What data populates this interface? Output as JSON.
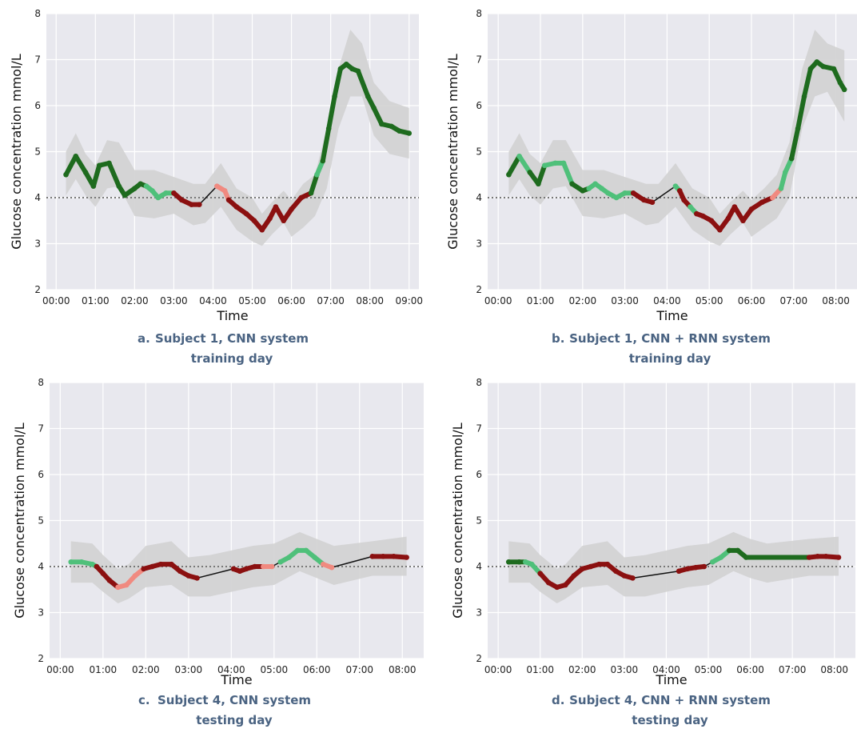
{
  "chart_data": [
    {
      "type": "line",
      "caption": {
        "letter": "a.",
        "line1": "Subject 1, CNN system",
        "line2": "training day"
      },
      "xlabel": "Time",
      "ylabel": "Glucose concentration mmol/L",
      "x_ticks": [
        "00:00",
        "01:00",
        "02:00",
        "03:00",
        "04:00",
        "05:00",
        "06:00",
        "07:00",
        "08:00",
        "09:00"
      ],
      "y_ticks": [
        "2",
        "3",
        "4",
        "5",
        "6",
        "7",
        "8"
      ],
      "xlim": [
        -0.25,
        9.25
      ],
      "ylim": [
        2,
        8
      ],
      "threshold": 4.0,
      "series": [
        {
          "x": [
            0.25,
            0.5,
            0.75,
            0.95,
            1.1,
            1.35,
            1.6,
            1.75,
            2.0,
            2.15,
            2.3,
            2.45,
            2.6,
            2.8,
            3.0,
            3.2,
            3.45,
            3.65,
            4.1,
            4.3,
            4.4,
            4.6,
            4.85,
            5.05,
            5.25,
            5.45,
            5.6,
            5.8,
            6.0,
            6.25,
            6.5,
            6.65,
            6.8,
            6.95,
            7.1,
            7.25,
            7.4,
            7.55,
            7.7,
            7.95,
            8.1,
            8.3,
            8.55,
            8.75,
            9.0
          ],
          "y": [
            4.5,
            4.9,
            4.55,
            4.25,
            4.7,
            4.75,
            4.25,
            4.05,
            4.2,
            4.3,
            4.25,
            4.15,
            4.0,
            4.1,
            4.1,
            3.95,
            3.85,
            3.85,
            4.25,
            4.15,
            3.95,
            3.8,
            3.65,
            3.5,
            3.3,
            3.55,
            3.8,
            3.5,
            3.75,
            4.0,
            4.1,
            4.5,
            4.8,
            5.5,
            6.2,
            6.8,
            6.9,
            6.8,
            6.75,
            6.2,
            5.95,
            5.6,
            5.55,
            5.45,
            5.4
          ],
          "colors": [
            "dg",
            "dg",
            "dg",
            "dg",
            "dg",
            "dg",
            "dg",
            "dg",
            "dg",
            "dg",
            "lg",
            "lg",
            "lg",
            "lg",
            "dr",
            "dr",
            "dr",
            "gap",
            "sal",
            "sal",
            "dr",
            "dr",
            "dr",
            "dr",
            "dr",
            "dr",
            "dr",
            "dr",
            "dr",
            "dr",
            "dg",
            "lg",
            "dg",
            "dg",
            "dg",
            "dg",
            "dg",
            "dg",
            "dg",
            "dg",
            "dg",
            "dg",
            "dg",
            "dg",
            "dg"
          ],
          "band": {
            "x": [
              0.25,
              0.5,
              0.75,
              1.0,
              1.3,
              1.6,
              2.0,
              2.5,
              3.0,
              3.5,
              3.8,
              4.2,
              4.6,
              5.0,
              5.25,
              5.5,
              5.8,
              6.0,
              6.3,
              6.6,
              6.9,
              7.2,
              7.5,
              7.8,
              8.1,
              8.5,
              9.0
            ],
            "upper": [
              5.0,
              5.4,
              4.95,
              4.7,
              5.25,
              5.2,
              4.6,
              4.6,
              4.45,
              4.3,
              4.3,
              4.75,
              4.2,
              4.0,
              3.65,
              3.9,
              4.15,
              3.95,
              4.3,
              4.5,
              5.5,
              6.8,
              7.65,
              7.35,
              6.5,
              6.1,
              5.95
            ],
            "lower": [
              4.05,
              4.4,
              4.05,
              3.8,
              4.2,
              4.25,
              3.6,
              3.55,
              3.65,
              3.4,
              3.45,
              3.8,
              3.3,
              3.05,
              2.95,
              3.2,
              3.45,
              3.15,
              3.35,
              3.6,
              4.2,
              5.5,
              6.2,
              6.2,
              5.35,
              4.95,
              4.85
            ]
          }
        }
      ]
    },
    {
      "type": "line",
      "caption": {
        "letter": "b.",
        "line1": "Subject 1, CNN + RNN system",
        "line2": "training day"
      },
      "xlabel": "Time",
      "ylabel": "Glucose concentration mmol/L",
      "x_ticks": [
        "00:00",
        "01:00",
        "02:00",
        "03:00",
        "04:00",
        "05:00",
        "06:00",
        "07:00",
        "08:00"
      ],
      "y_ticks": [
        "2",
        "3",
        "4",
        "5",
        "6",
        "7",
        "8"
      ],
      "xlim": [
        -0.25,
        8.5
      ],
      "ylim": [
        2,
        8
      ],
      "threshold": 4.0,
      "series": [
        {
          "x": [
            0.25,
            0.5,
            0.75,
            0.95,
            1.1,
            1.35,
            1.55,
            1.75,
            2.0,
            2.15,
            2.3,
            2.45,
            2.6,
            2.8,
            3.0,
            3.2,
            3.45,
            3.65,
            4.2,
            4.3,
            4.4,
            4.55,
            4.7,
            4.85,
            5.05,
            5.25,
            5.45,
            5.6,
            5.8,
            6.0,
            6.25,
            6.5,
            6.7,
            6.8,
            6.95,
            7.1,
            7.25,
            7.4,
            7.55,
            7.7,
            7.95,
            8.1,
            8.2
          ],
          "y": [
            4.5,
            4.9,
            4.55,
            4.3,
            4.7,
            4.75,
            4.75,
            4.3,
            4.15,
            4.2,
            4.3,
            4.2,
            4.1,
            4.0,
            4.1,
            4.1,
            3.95,
            3.9,
            4.25,
            4.15,
            3.95,
            3.8,
            3.65,
            3.6,
            3.5,
            3.3,
            3.55,
            3.8,
            3.5,
            3.75,
            3.9,
            4.0,
            4.2,
            4.55,
            4.85,
            5.5,
            6.2,
            6.8,
            6.95,
            6.85,
            6.8,
            6.5,
            6.35
          ],
          "colors": [
            "dg",
            "lg",
            "dg",
            "dg",
            "lg",
            "lg",
            "lg",
            "dg",
            "dg",
            "lg",
            "lg",
            "lg",
            "lg",
            "lg",
            "lg",
            "dr",
            "dr",
            "gap",
            "lg",
            "dr",
            "dr",
            "lg",
            "dr",
            "dr",
            "dr",
            "dr",
            "dr",
            "dr",
            "dr",
            "dr",
            "dr",
            "sal",
            "lg",
            "lg",
            "dg",
            "dg",
            "dg",
            "dg",
            "dg",
            "dg",
            "dg",
            "dg",
            "dg"
          ],
          "band": {
            "x": [
              0.25,
              0.5,
              0.75,
              1.0,
              1.3,
              1.6,
              2.0,
              2.5,
              3.0,
              3.5,
              3.8,
              4.2,
              4.6,
              5.0,
              5.25,
              5.5,
              5.8,
              6.0,
              6.3,
              6.6,
              6.9,
              7.2,
              7.5,
              7.8,
              8.2
            ],
            "upper": [
              5.0,
              5.4,
              4.95,
              4.75,
              5.25,
              5.25,
              4.6,
              4.6,
              4.45,
              4.3,
              4.3,
              4.75,
              4.2,
              4.0,
              3.65,
              3.9,
              4.15,
              3.95,
              4.2,
              4.5,
              5.2,
              6.8,
              7.65,
              7.35,
              7.2
            ],
            "lower": [
              4.05,
              4.4,
              4.05,
              3.85,
              4.2,
              4.25,
              3.6,
              3.55,
              3.65,
              3.4,
              3.45,
              3.8,
              3.3,
              3.05,
              2.95,
              3.2,
              3.45,
              3.15,
              3.35,
              3.55,
              4.0,
              5.5,
              6.2,
              6.3,
              5.65
            ]
          }
        }
      ]
    },
    {
      "type": "line",
      "caption": {
        "letter": "c.",
        "line1": "Subject 4, CNN system",
        "line2": "testing day"
      },
      "xlabel": "Time",
      "ylabel": "Glucose concentration mmol/L",
      "x_ticks": [
        "00:00",
        "01:00",
        "02:00",
        "03:00",
        "04:00",
        "05:00",
        "06:00",
        "07:00",
        "08:00"
      ],
      "y_ticks": [
        "2",
        "3",
        "4",
        "5",
        "6",
        "7",
        "8"
      ],
      "xlim": [
        -0.25,
        8.5
      ],
      "ylim": [
        2,
        8
      ],
      "threshold": 4.0,
      "series": [
        {
          "x": [
            0.25,
            0.5,
            0.75,
            0.85,
            1.0,
            1.15,
            1.35,
            1.55,
            1.75,
            1.95,
            2.15,
            2.35,
            2.6,
            2.8,
            3.0,
            3.2,
            4.05,
            4.2,
            4.35,
            4.55,
            4.75,
            4.95,
            5.15,
            5.35,
            5.55,
            5.75,
            5.95,
            6.15,
            6.35,
            7.3,
            7.55,
            7.8,
            8.1
          ],
          "y": [
            4.1,
            4.1,
            4.05,
            4.0,
            3.85,
            3.7,
            3.55,
            3.6,
            3.8,
            3.95,
            4.0,
            4.05,
            4.05,
            3.9,
            3.8,
            3.75,
            3.95,
            3.9,
            3.95,
            4.0,
            4.0,
            4.0,
            4.1,
            4.2,
            4.35,
            4.35,
            4.2,
            4.05,
            3.98,
            4.22,
            4.22,
            4.22,
            4.2
          ],
          "colors": [
            "lg",
            "lg",
            "lg",
            "dr",
            "dr",
            "dr",
            "sal",
            "sal",
            "sal",
            "dr",
            "dr",
            "dr",
            "dr",
            "dr",
            "dr",
            "gap",
            "dr",
            "dr",
            "dr",
            "dr",
            "sal",
            "gap",
            "lg",
            "lg",
            "lg",
            "lg",
            "lg",
            "sal",
            "gap",
            "dr",
            "dr",
            "dr",
            "dr"
          ],
          "band": {
            "x": [
              0.25,
              0.75,
              1.0,
              1.35,
              1.6,
              2.0,
              2.6,
              3.0,
              3.5,
              4.0,
              4.5,
              5.0,
              5.6,
              6.0,
              6.4,
              7.3,
              8.1
            ],
            "upper": [
              4.55,
              4.5,
              4.25,
              3.95,
              4.05,
              4.45,
              4.55,
              4.2,
              4.25,
              4.35,
              4.45,
              4.5,
              4.75,
              4.6,
              4.45,
              4.55,
              4.65
            ],
            "lower": [
              3.65,
              3.65,
              3.45,
              3.2,
              3.3,
              3.55,
              3.6,
              3.35,
              3.35,
              3.45,
              3.55,
              3.6,
              3.9,
              3.75,
              3.6,
              3.8,
              3.8
            ]
          }
        }
      ]
    },
    {
      "type": "line",
      "caption": {
        "letter": "d.",
        "line1": "Subject 4, CNN + RNN system",
        "line2": "testing day"
      },
      "xlabel": "Time",
      "ylabel": "Glucose concentration mmol/L",
      "x_ticks": [
        "00:00",
        "01:00",
        "02:00",
        "03:00",
        "04:00",
        "05:00",
        "06:00",
        "07:00",
        "08:00"
      ],
      "y_ticks": [
        "2",
        "3",
        "4",
        "5",
        "6",
        "7",
        "8"
      ],
      "xlim": [
        -0.25,
        8.5
      ],
      "ylim": [
        2,
        8
      ],
      "threshold": 4.0,
      "series": [
        {
          "x": [
            0.25,
            0.5,
            0.65,
            0.8,
            1.0,
            1.2,
            1.4,
            1.6,
            1.8,
            2.0,
            2.2,
            2.4,
            2.6,
            2.8,
            3.0,
            3.2,
            4.3,
            4.5,
            4.7,
            4.9,
            5.1,
            5.3,
            5.5,
            5.7,
            5.9,
            7.4,
            7.6,
            7.8,
            8.1
          ],
          "y": [
            4.1,
            4.1,
            4.1,
            4.05,
            3.85,
            3.65,
            3.55,
            3.6,
            3.8,
            3.95,
            4.0,
            4.05,
            4.05,
            3.9,
            3.8,
            3.75,
            3.9,
            3.95,
            3.98,
            4.0,
            4.1,
            4.2,
            4.35,
            4.35,
            4.2,
            4.2,
            4.22,
            4.22,
            4.2
          ],
          "colors": [
            "dg",
            "dg",
            "lg",
            "lg",
            "dr",
            "dr",
            "dr",
            "dr",
            "dr",
            "dr",
            "dr",
            "dr",
            "dr",
            "dr",
            "dr",
            "gap",
            "dr",
            "dr",
            "dr",
            "gap",
            "lg",
            "lg",
            "dg",
            "dg",
            "dg",
            "dr",
            "dr",
            "dr",
            "dr"
          ],
          "band": {
            "x": [
              0.25,
              0.75,
              1.0,
              1.4,
              1.6,
              2.0,
              2.6,
              3.0,
              3.5,
              4.0,
              4.5,
              5.0,
              5.6,
              6.0,
              6.4,
              7.4,
              8.1
            ],
            "upper": [
              4.55,
              4.5,
              4.25,
              3.95,
              4.05,
              4.45,
              4.55,
              4.2,
              4.25,
              4.35,
              4.45,
              4.5,
              4.75,
              4.6,
              4.5,
              4.6,
              4.65
            ],
            "lower": [
              3.65,
              3.65,
              3.45,
              3.2,
              3.3,
              3.55,
              3.6,
              3.35,
              3.35,
              3.45,
              3.55,
              3.6,
              3.9,
              3.75,
              3.65,
              3.8,
              3.8
            ]
          }
        }
      ]
    }
  ],
  "colors": {
    "dg": "#1e6b1e",
    "lg": "#4fc07a",
    "dr": "#8b1010",
    "sal": "#f08a80",
    "gap": "#111111",
    "panel_bg": "#e8e8ee",
    "band": "#d2d2d2",
    "grid": "#ffffff",
    "threshold": "#777777",
    "caption": "#4a6382"
  }
}
